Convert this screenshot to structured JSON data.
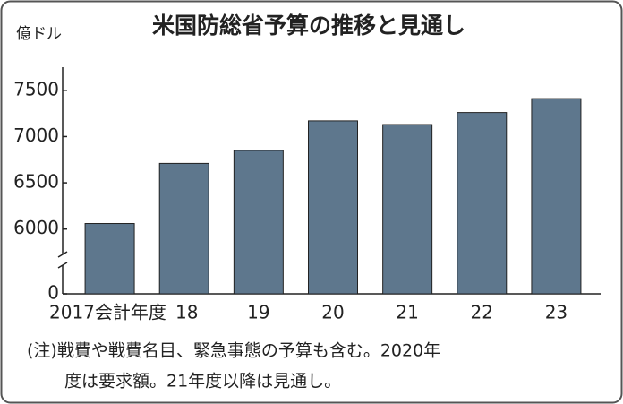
{
  "chart_data": {
    "type": "bar",
    "title": "米国防総省予算の推移と見通し",
    "ylabel": "億ドル",
    "categories": [
      "2017",
      "18",
      "19",
      "20",
      "21",
      "22",
      "23"
    ],
    "xlabel": "会計年度",
    "values": [
      6060,
      6710,
      6850,
      7170,
      7130,
      7260,
      7410
    ],
    "color": "#5e778d",
    "ylim": [
      0,
      7750
    ],
    "yticks": [
      0,
      6000,
      6500,
      7000,
      7500
    ],
    "axis_break": [
      0,
      5300
    ],
    "grid": false,
    "notes": [
      "(注)戦費や戦費名目、緊急事態の予算も含む。2020年",
      "度は要求額。21年度以降は見通し。"
    ]
  }
}
